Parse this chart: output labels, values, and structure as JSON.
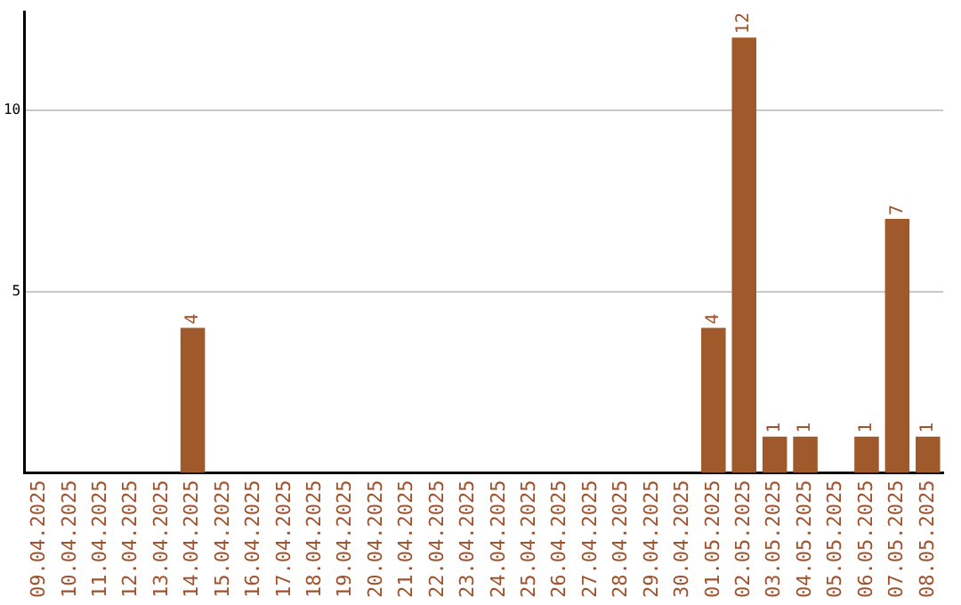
{
  "chart_data": {
    "type": "bar",
    "categories": [
      "09.04.2025",
      "10.04.2025",
      "11.04.2025",
      "12.04.2025",
      "13.04.2025",
      "14.04.2025",
      "15.04.2025",
      "16.04.2025",
      "17.04.2025",
      "18.04.2025",
      "19.04.2025",
      "20.04.2025",
      "21.04.2025",
      "22.04.2025",
      "23.04.2025",
      "24.04.2025",
      "25.04.2025",
      "26.04.2025",
      "27.04.2025",
      "28.04.2025",
      "29.04.2025",
      "30.04.2025",
      "01.05.2025",
      "02.05.2025",
      "03.05.2025",
      "04.05.2025",
      "05.05.2025",
      "06.05.2025",
      "07.05.2025",
      "08.05.2025"
    ],
    "values": [
      0,
      0,
      0,
      0,
      0,
      4,
      0,
      0,
      0,
      0,
      0,
      0,
      0,
      0,
      0,
      0,
      0,
      0,
      0,
      0,
      0,
      0,
      4,
      12,
      1,
      1,
      0,
      1,
      7,
      1
    ],
    "value_labels": [
      null,
      null,
      null,
      null,
      null,
      "4",
      null,
      null,
      null,
      null,
      null,
      null,
      null,
      null,
      null,
      null,
      null,
      null,
      null,
      null,
      null,
      null,
      "4",
      "12",
      "1",
      "1",
      null,
      "1",
      "7",
      "1"
    ],
    "color": "#a0592a",
    "ylim": [
      0,
      12.7
    ],
    "yticks": [
      5,
      10
    ],
    "grid": "y"
  }
}
